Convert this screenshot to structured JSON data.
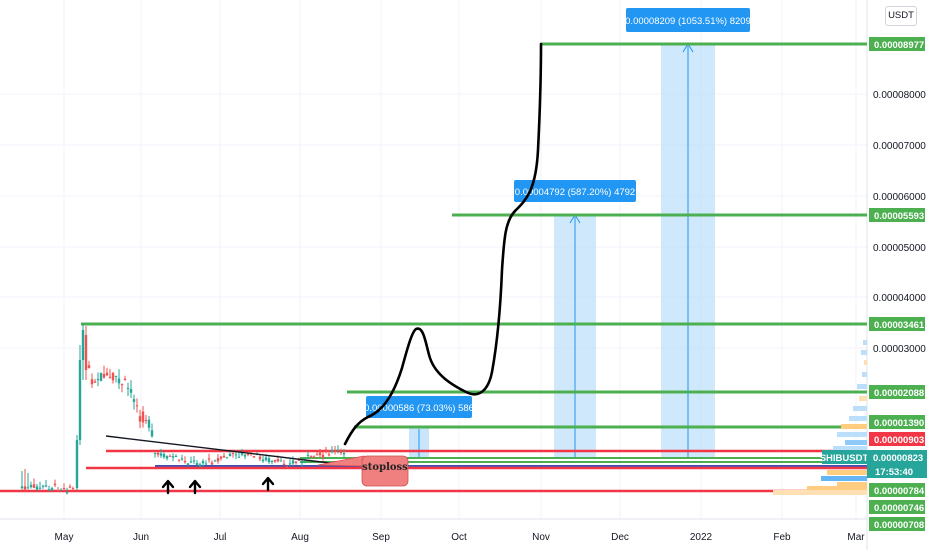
{
  "chart": {
    "currency": "USDT",
    "symbol": "SHIBUSDT",
    "last_price": "0.00000823",
    "countdown": "17:53:40",
    "y_axis_ticks": [
      "0.00008000",
      "0.00007000",
      "0.00006000",
      "0.00005000",
      "0.00004000",
      "0.00003000"
    ],
    "x_axis_ticks": [
      "May",
      "Jun",
      "Jul",
      "Aug",
      "Sep",
      "Oct",
      "Nov",
      "Dec",
      "2022",
      "Feb",
      "Mar"
    ],
    "price_tags": [
      {
        "label": "0.00008977",
        "color": "#4caf50"
      },
      {
        "label": "0.00005593",
        "color": "#4caf50"
      },
      {
        "label": "0.00003461",
        "color": "#4caf50"
      },
      {
        "label": "0.00002088",
        "color": "#4caf50"
      },
      {
        "label": "0.00001390",
        "color": "#4caf50"
      },
      {
        "label": "0.00000903",
        "color": "#f23645"
      },
      {
        "label": "0.00000784",
        "color": "#4caf50"
      },
      {
        "label": "0.00000746",
        "color": "#4caf50"
      },
      {
        "label": "0.00000708",
        "color": "#4caf50"
      }
    ],
    "annotations": [
      "0.00008209 (1053.51%) 8209",
      "0.00004792 (587.20%) 4792",
      "0.00000586 (73.03%) 586"
    ],
    "stoploss_label": "stoploss"
  },
  "chart_data": {
    "type": "line",
    "title": "",
    "symbol": "SHIBUSDT",
    "quote": "USDT",
    "x_ticks": [
      "May",
      "Jun",
      "Jul",
      "Aug",
      "Sep",
      "Oct",
      "Nov",
      "Dec",
      "2022",
      "Feb",
      "Mar"
    ],
    "y_ticks": [
      3e-05,
      4e-05,
      5e-05,
      6e-05,
      7e-05,
      8e-05
    ],
    "horizontal_levels": [
      {
        "price": 8.977e-05,
        "color": "#4caf50"
      },
      {
        "price": 5.593e-05,
        "color": "#4caf50"
      },
      {
        "price": 3.461e-05,
        "color": "#4caf50"
      },
      {
        "price": 2.088e-05,
        "color": "#4caf50"
      },
      {
        "price": 1.39e-05,
        "color": "#4caf50"
      },
      {
        "price": 9.03e-06,
        "color": "#f23645"
      },
      {
        "price": 7.84e-06,
        "color": "#4caf50"
      },
      {
        "price": 7.46e-06,
        "color": "#4caf50"
      },
      {
        "price": 7.08e-06,
        "color": "#4caf50"
      }
    ],
    "projections": [
      {
        "label": "0.00000586 (73.03%) 586",
        "change": 5.86e-06,
        "percent": 73.03,
        "ticks": 586
      },
      {
        "label": "0.00004792 (587.20%) 4792",
        "change": 4.792e-05,
        "percent": 587.2,
        "ticks": 4792
      },
      {
        "label": "0.00008209 (1053.51%) 8209",
        "change": 8.209e-05,
        "percent": 1053.51,
        "ticks": 8209
      }
    ],
    "last_price": 8.23e-06,
    "colors": {
      "up": "#26a69a",
      "down": "#ef5350",
      "level_green": "#4caf50",
      "level_red": "#f23645",
      "projection": "#2196f3"
    }
  }
}
